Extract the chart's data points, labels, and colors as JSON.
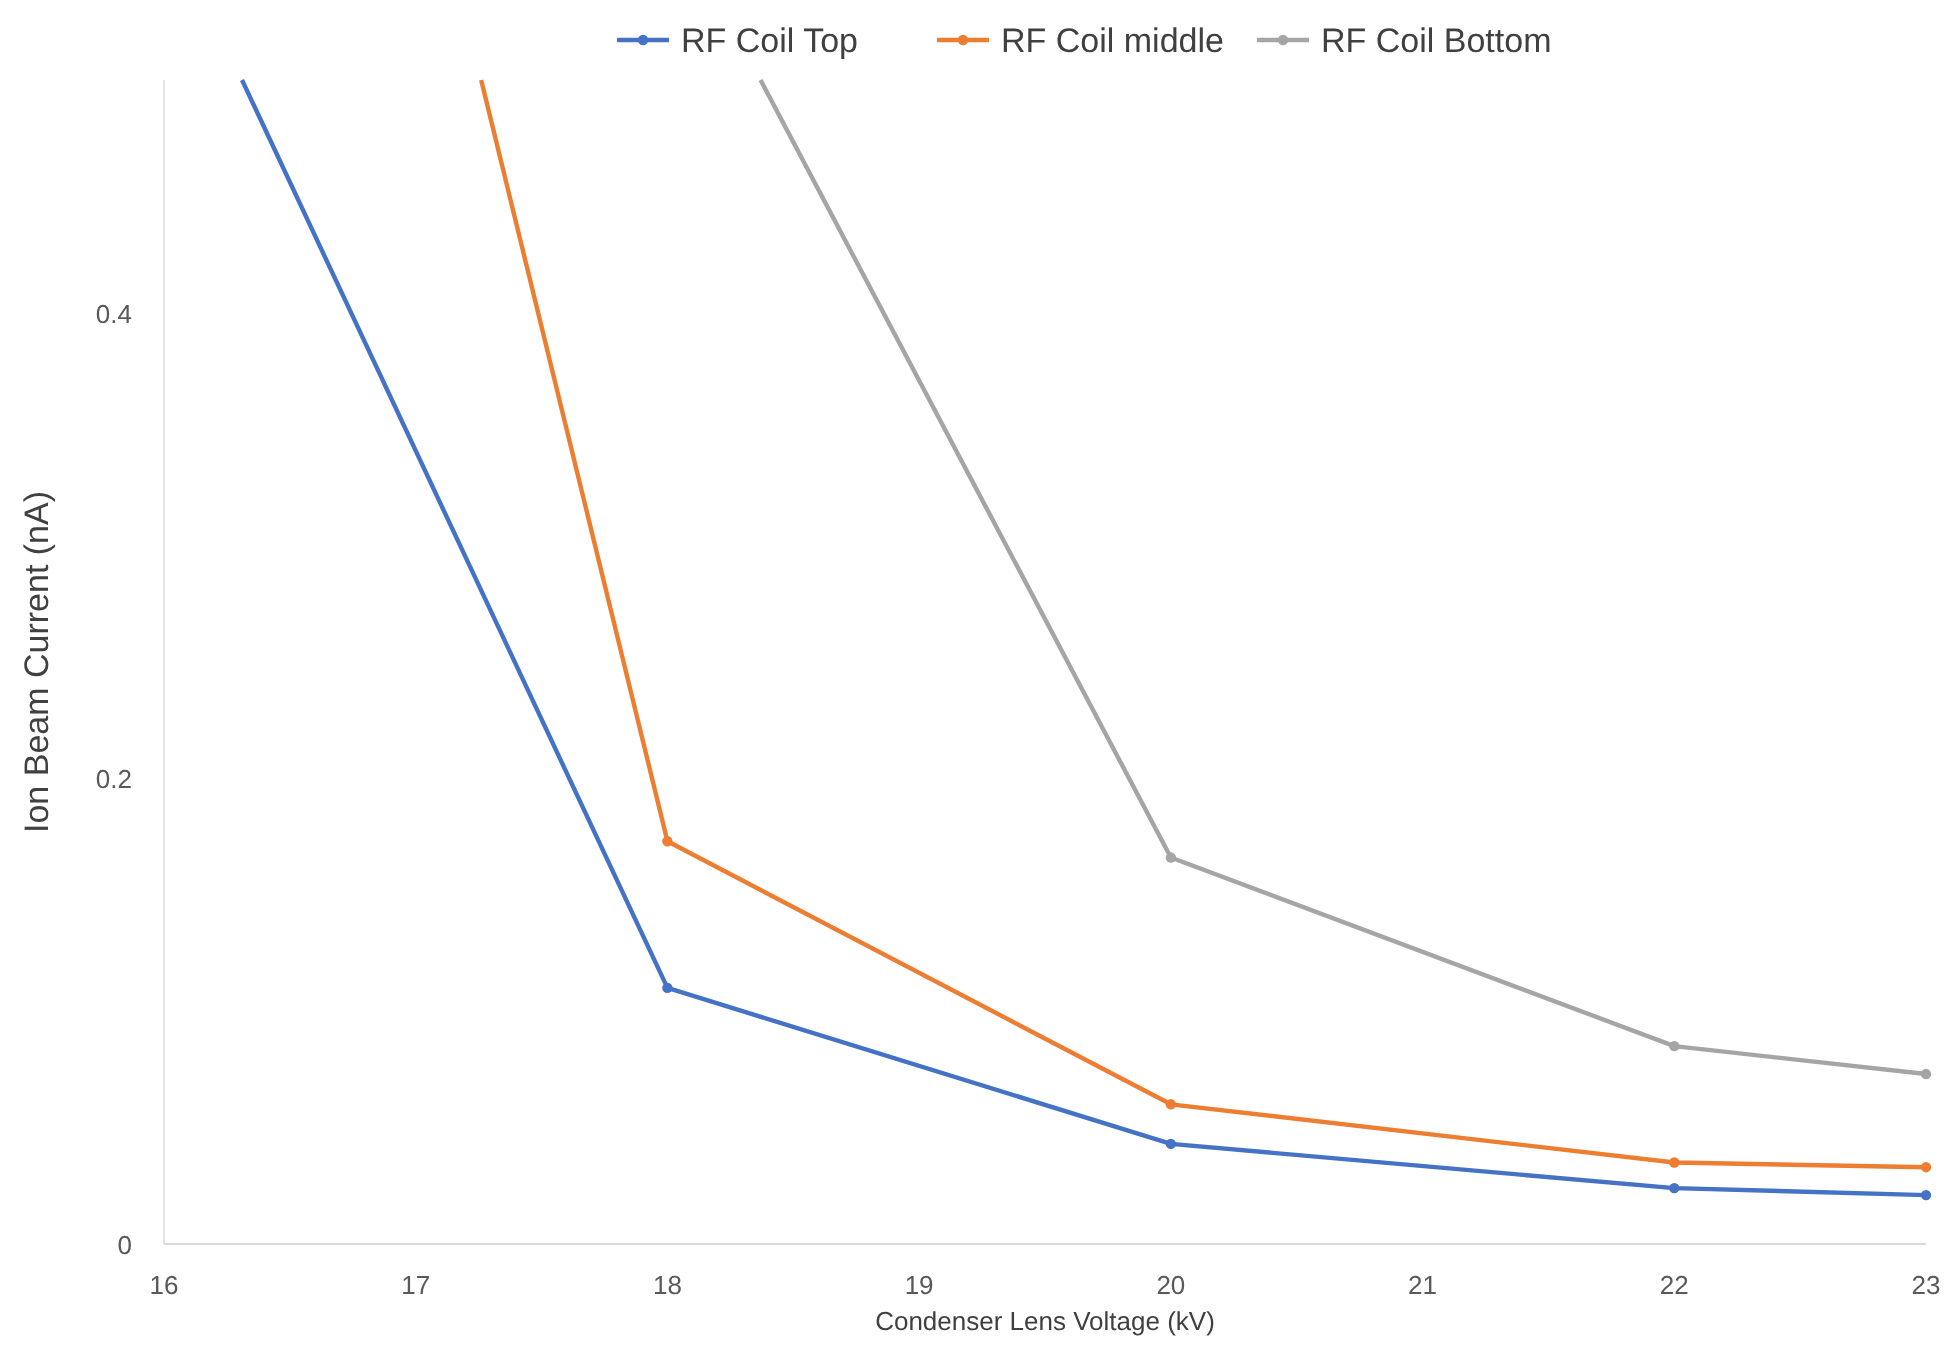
{
  "chart_data": {
    "type": "line",
    "xlabel": "Condenser Lens Voltage (kV)",
    "ylabel": "Ion Beam Current (nA)",
    "xlim": [
      16,
      23
    ],
    "xticks": [
      16,
      17,
      18,
      19,
      20,
      21,
      22,
      23
    ],
    "ylim": [
      0,
      0.5
    ],
    "yticks": [
      0,
      0.2,
      0.4
    ],
    "grid": false,
    "legend": "top",
    "marker": "circle",
    "series": [
      {
        "name": "RF Coil Top",
        "color": "#4472c4",
        "x": [
          16.31,
          18,
          20,
          22,
          23
        ],
        "values": [
          0.5,
          0.11,
          0.043,
          0.024,
          0.021
        ]
      },
      {
        "name": "RF Coil middle",
        "color": "#ed7d31",
        "x": [
          17.26,
          18,
          20,
          22,
          23
        ],
        "values": [
          0.5,
          0.173,
          0.06,
          0.035,
          0.033
        ]
      },
      {
        "name": "RF Coil Bottom",
        "color": "#a5a5a5",
        "x": [
          18.37,
          20,
          22,
          23
        ],
        "values": [
          0.5,
          0.166,
          0.085,
          0.073
        ]
      }
    ]
  }
}
